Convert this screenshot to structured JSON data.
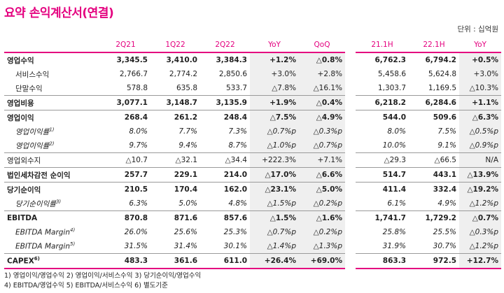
{
  "title": "요약 손익계산서(연결)",
  "unit": "단위 : 십억원",
  "headers": [
    "",
    "2Q21",
    "1Q22",
    "2Q22",
    "YoY",
    "QoQ",
    "",
    "21.1H",
    "22.1H",
    "YoY"
  ],
  "rows": [
    {
      "label": "영업수익",
      "sup": "",
      "values": [
        "3,345.5",
        "3,410.0",
        "3,384.3",
        "+1.2%",
        "△0.8%",
        "6,762.3",
        "6,794.2",
        "+0.5%"
      ]
    },
    {
      "label": "서비스수익",
      "sup": "",
      "values": [
        "2,766.7",
        "2,774.2",
        "2,850.6",
        "+3.0%",
        "+2.8%",
        "5,458.6",
        "5,624.8",
        "+3.0%"
      ]
    },
    {
      "label": "단말수익",
      "sup": "",
      "values": [
        "578.8",
        "635.8",
        "533.7",
        "△7.8%",
        "△16.1%",
        "1,303.7",
        "1,169.5",
        "△10.3%"
      ]
    },
    {
      "label": "영업비용",
      "sup": "",
      "values": [
        "3,077.1",
        "3,148.7",
        "3,135.9",
        "+1.9%",
        "△0.4%",
        "6,218.2",
        "6,284.6",
        "+1.1%"
      ]
    },
    {
      "label": "영업이익",
      "sup": "",
      "values": [
        "268.4",
        "261.2",
        "248.4",
        "△7.5%",
        "△4.9%",
        "544.0",
        "509.6",
        "△6.3%"
      ]
    },
    {
      "label": "영업이익률",
      "sup": "1)",
      "values": [
        "8.0%",
        "7.7%",
        "7.3%",
        "△0.7%p",
        "△0.3%p",
        "8.0%",
        "7.5%",
        "△0.5%p"
      ]
    },
    {
      "label": "영업이익률",
      "sup": "2)",
      "values": [
        "9.7%",
        "9.4%",
        "8.7%",
        "△1.0%p",
        "△0.7%p",
        "10.0%",
        "9.1%",
        "△0.9%p"
      ]
    },
    {
      "label": "영업외수지",
      "sup": "",
      "values": [
        "△10.7",
        "△32.1",
        "△34.4",
        "+222.3%",
        "+7.1%",
        "△29.3",
        "△66.5",
        "N/A"
      ]
    },
    {
      "label": "법인세차감전 순이익",
      "sup": "",
      "values": [
        "257.7",
        "229.1",
        "214.0",
        "△17.0%",
        "△6.6%",
        "514.7",
        "443.1",
        "△13.9%"
      ]
    },
    {
      "label": "당기순이익",
      "sup": "",
      "values": [
        "210.5",
        "170.4",
        "162.0",
        "△23.1%",
        "△5.0%",
        "411.4",
        "332.4",
        "△19.2%"
      ]
    },
    {
      "label": "당기순이익률",
      "sup": "3)",
      "values": [
        "6.3%",
        "5.0%",
        "4.8%",
        "△1.5%p",
        "△0.2%p",
        "6.1%",
        "4.9%",
        "△1.2%p"
      ]
    },
    {
      "label": "EBITDA",
      "sup": "",
      "values": [
        "870.8",
        "871.6",
        "857.6",
        "△1.5%",
        "△1.6%",
        "1,741.7",
        "1,729.2",
        "△0.7%"
      ]
    },
    {
      "label": "EBITDA Margin",
      "sup": "4)",
      "values": [
        "26.0%",
        "25.6%",
        "25.3%",
        "△0.7%p",
        "△0.2%p",
        "25.8%",
        "25.5%",
        "△0.3%p"
      ]
    },
    {
      "label": "EBITDA Margin",
      "sup": "5)",
      "values": [
        "31.5%",
        "31.4%",
        "30.1%",
        "△1.4%p",
        "△1.3%p",
        "31.9%",
        "30.7%",
        "△1.2%p"
      ]
    },
    {
      "label": "CAPEX",
      "sup": "6)",
      "values": [
        "483.3",
        "361.6",
        "611.0",
        "+26.4%",
        "+69.0%",
        "863.3",
        "972.5",
        "+12.7%"
      ]
    }
  ],
  "notes": [
    "1) 영업이익/영업수익  2) 영업이익/서비스수익  3) 당기순이익/영업수익",
    "4) EBITDA/영업수익  5) EBITDA/서비스수익  6) 별도기준"
  ]
}
